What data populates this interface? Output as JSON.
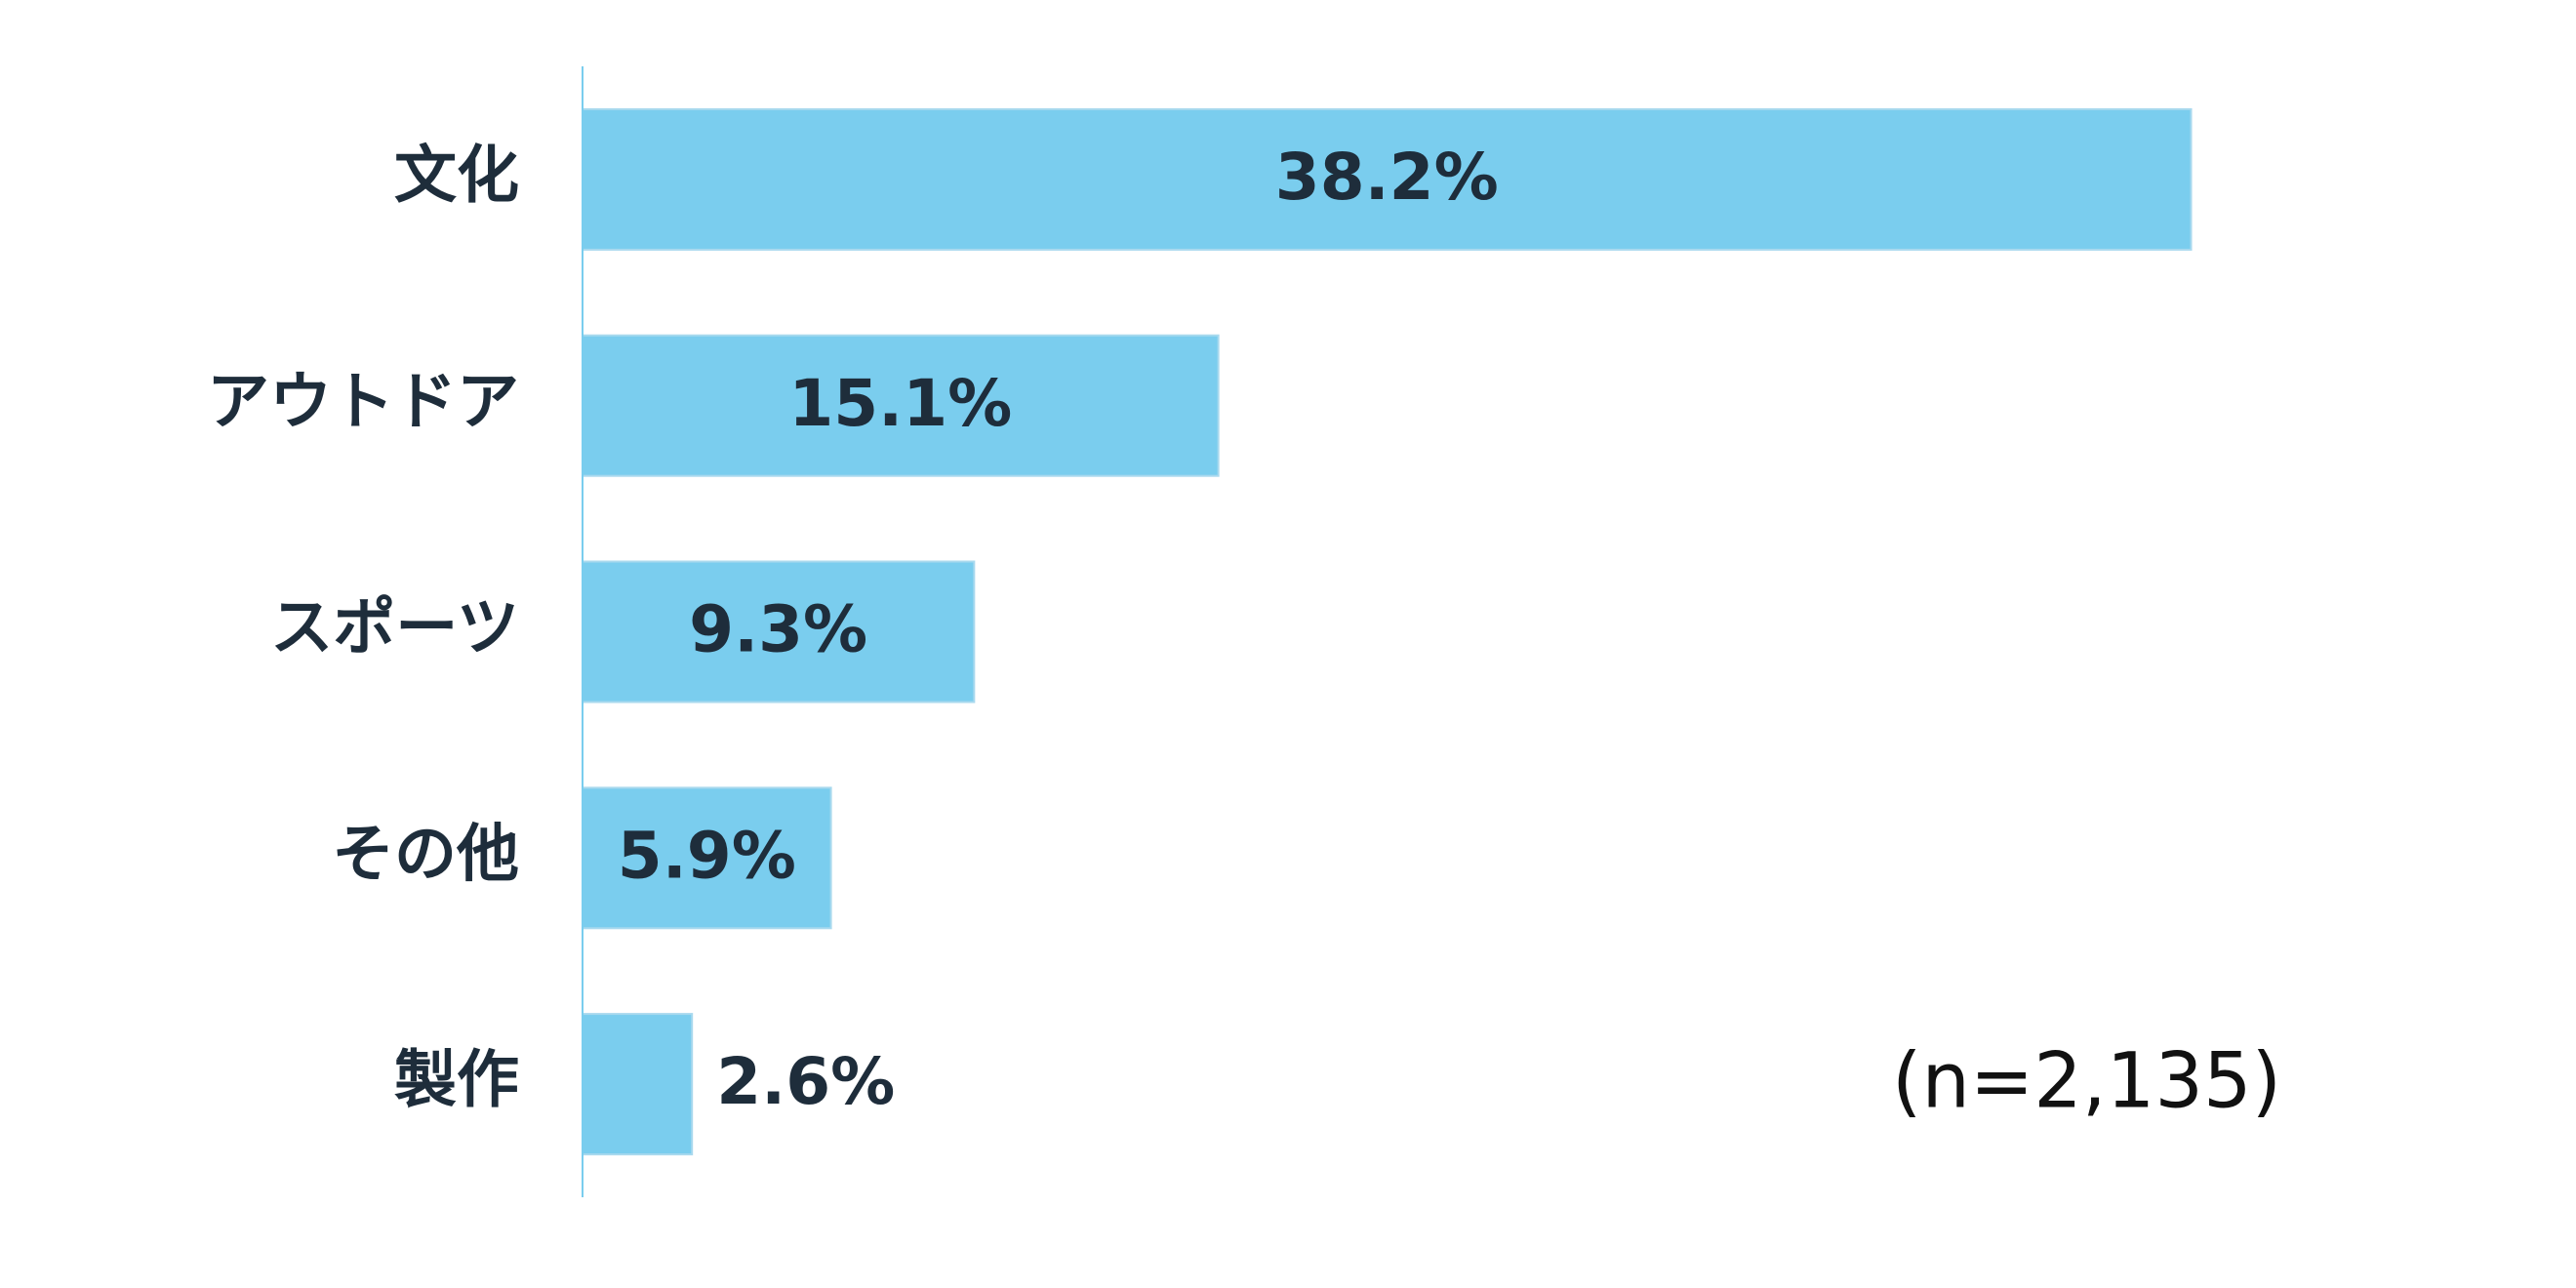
{
  "chart_data": {
    "type": "barh",
    "categories": [
      "文化",
      "アウトドア",
      "スポーツ",
      "その他",
      "製作"
    ],
    "values": [
      38.2,
      15.1,
      9.3,
      5.9,
      2.6
    ],
    "value_labels": [
      "38.2%",
      "15.1%",
      "9.3%",
      "5.9%",
      "2.6%"
    ],
    "color": "#7acdee",
    "xlim": [
      0,
      45
    ],
    "annotation": "(n=2,135)"
  }
}
